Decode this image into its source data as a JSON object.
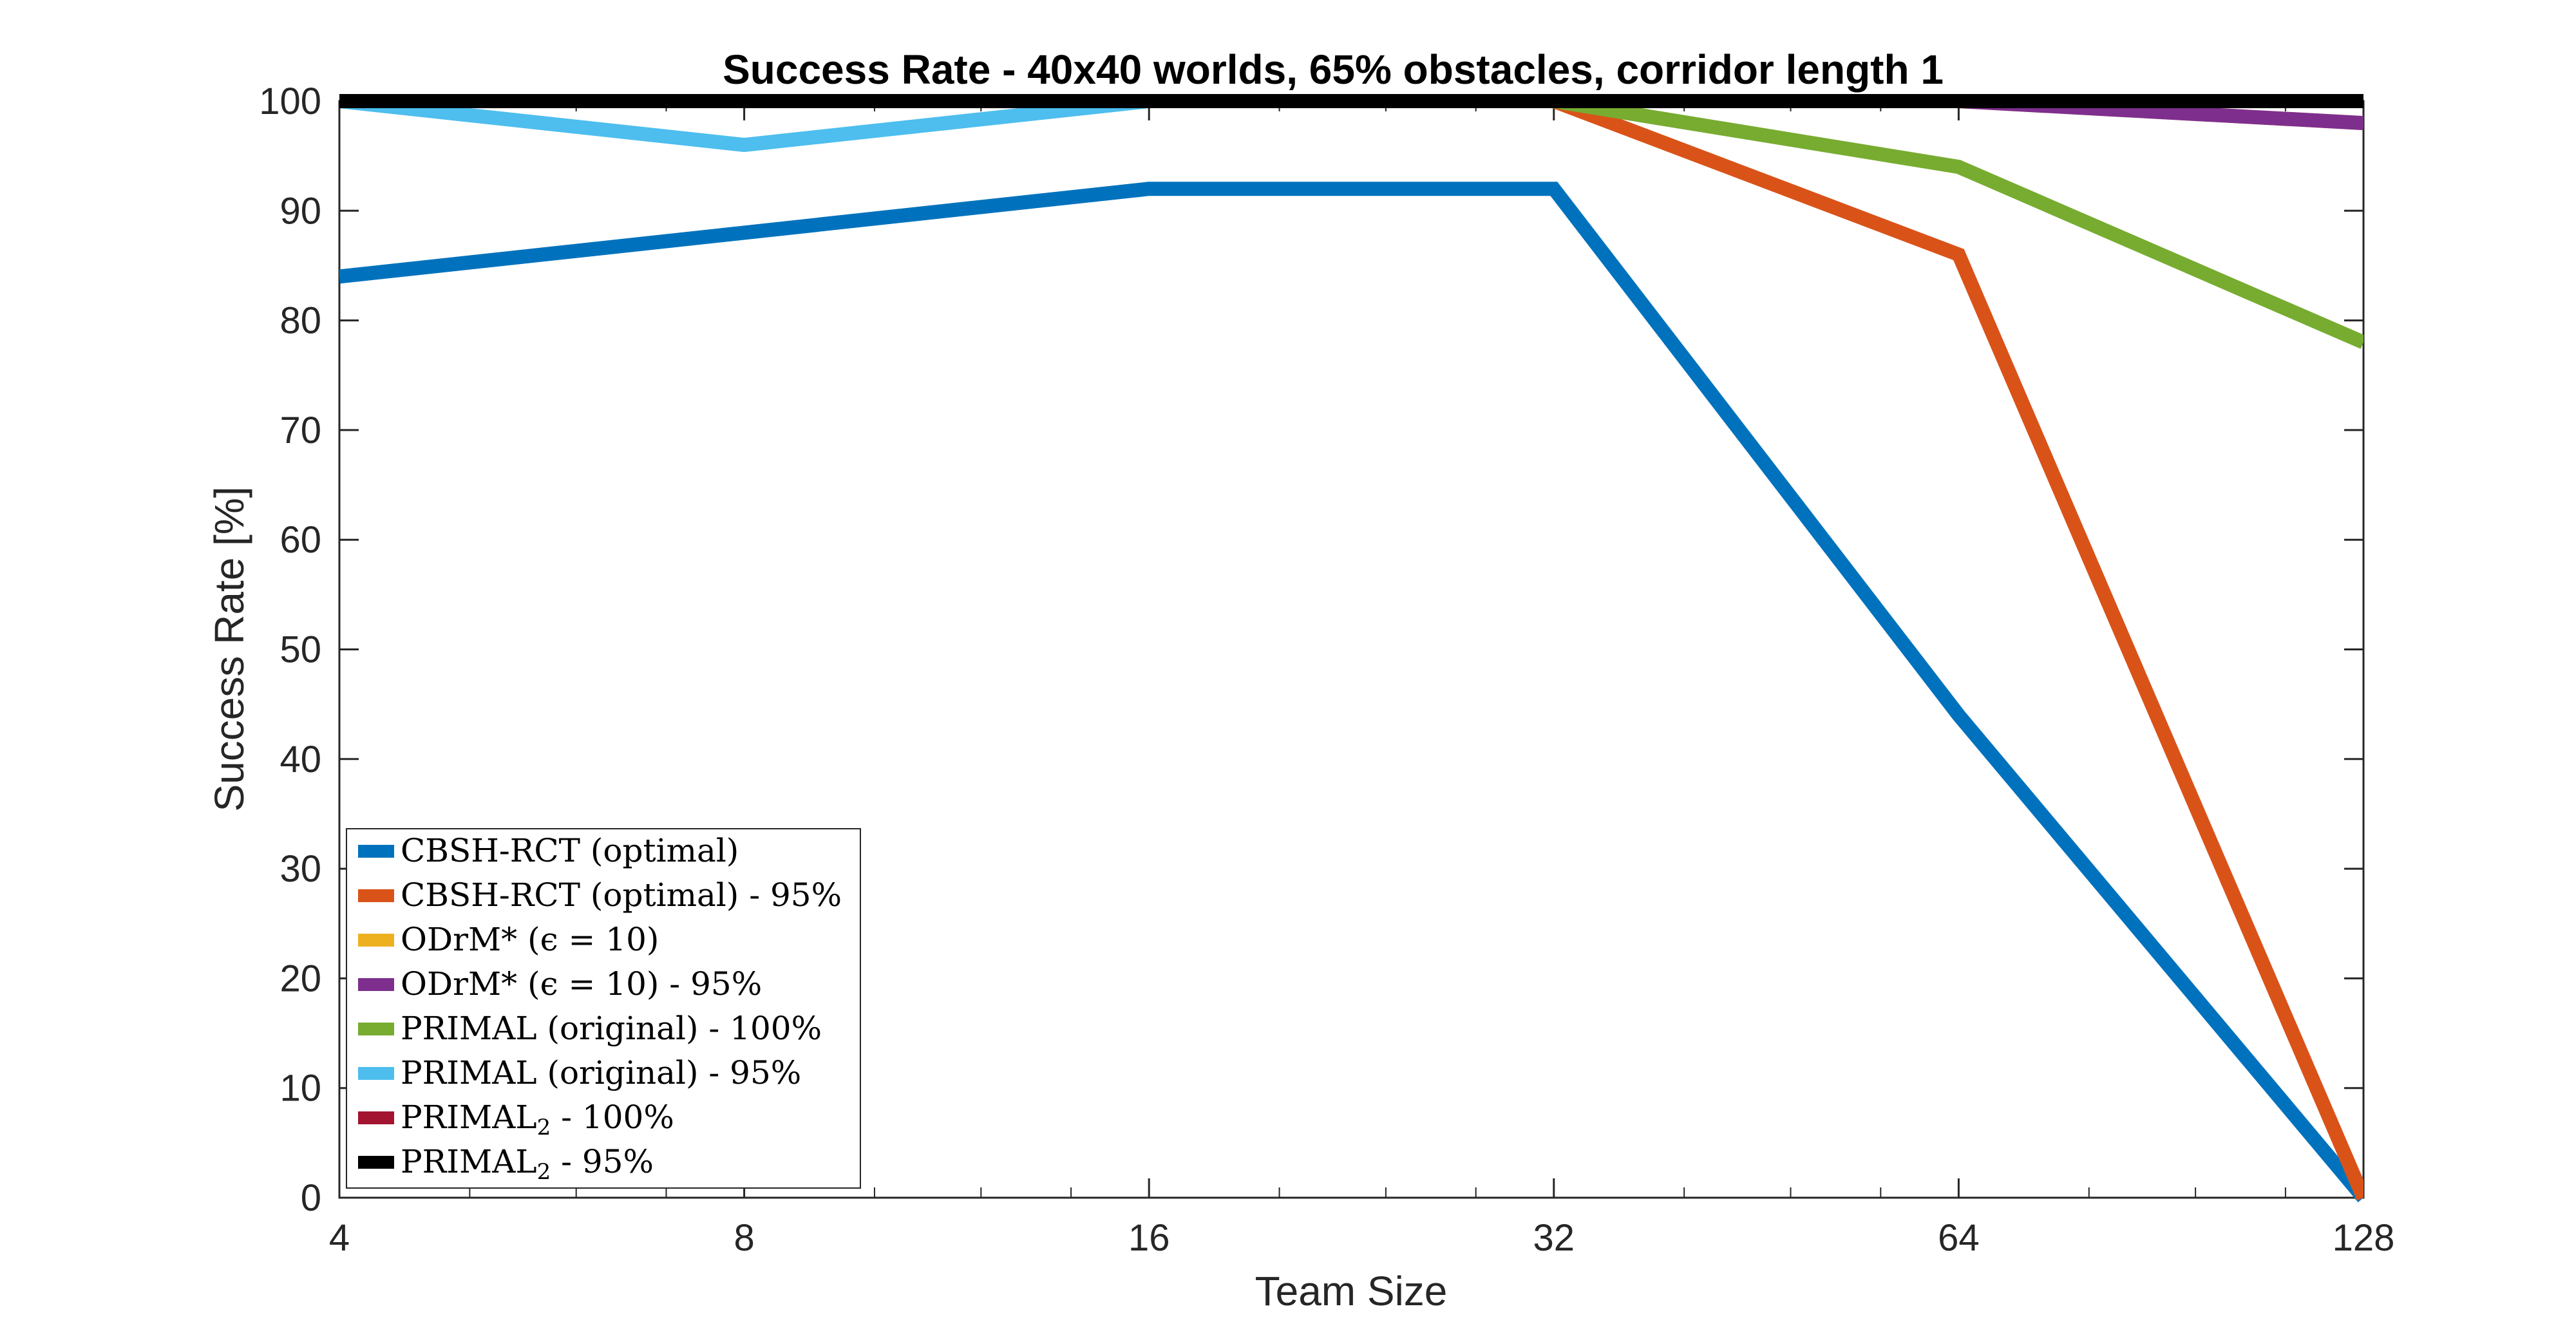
{
  "chart_data": {
    "type": "line",
    "title": "Success Rate - 40x40 worlds, 65% obstacles, corridor length 1",
    "xlabel": "Team Size",
    "ylabel": "Success Rate [%]",
    "xscale": "log2",
    "xlim": [
      4,
      128
    ],
    "ylim": [
      0,
      100
    ],
    "x": [
      4,
      8,
      16,
      32,
      64,
      128
    ],
    "xticks": [
      "4",
      "8",
      "16",
      "32",
      "64",
      "128"
    ],
    "yticks": [
      "0",
      "10",
      "20",
      "30",
      "40",
      "50",
      "60",
      "70",
      "80",
      "90",
      "100"
    ],
    "grid": false,
    "legend_position": "bottom-left",
    "series": [
      {
        "name": "CBSH-RCT (optimal)",
        "name_sub": "",
        "name_suffix": "",
        "color": "#0072BD",
        "values": [
          84,
          88,
          92,
          92,
          44,
          0
        ]
      },
      {
        "name": "CBSH-RCT (optimal) - 95%",
        "name_sub": "",
        "name_suffix": "",
        "color": "#D95319",
        "values": [
          100,
          100,
          100,
          100,
          86,
          0
        ]
      },
      {
        "name": "ODrM* (ϵ = 10)",
        "name_sub": "",
        "name_suffix": "",
        "color": "#EDB120",
        "values": [
          100,
          100,
          100,
          100,
          100,
          98
        ]
      },
      {
        "name": "ODrM* (ϵ = 10) - 95%",
        "name_sub": "",
        "name_suffix": "",
        "color": "#7E2F8E",
        "values": [
          100,
          100,
          100,
          100,
          100,
          98
        ]
      },
      {
        "name": "PRIMAL (original) - 100%",
        "name_sub": "",
        "name_suffix": "",
        "color": "#77AC30",
        "values": [
          100,
          100,
          100,
          100,
          94,
          78
        ]
      },
      {
        "name": "PRIMAL (original) - 95%",
        "name_sub": "",
        "name_suffix": "",
        "color": "#4DBEEE",
        "values": [
          100,
          96,
          100,
          100,
          100,
          100
        ]
      },
      {
        "name": "PRIMAL",
        "name_sub": "2",
        "name_suffix": " - 100%",
        "color": "#A2142F",
        "values": [
          100,
          100,
          100,
          100,
          100,
          100
        ]
      },
      {
        "name": "PRIMAL",
        "name_sub": "2",
        "name_suffix": " - 95%",
        "color": "#000000",
        "values": [
          100,
          100,
          100,
          100,
          100,
          100
        ]
      }
    ]
  }
}
